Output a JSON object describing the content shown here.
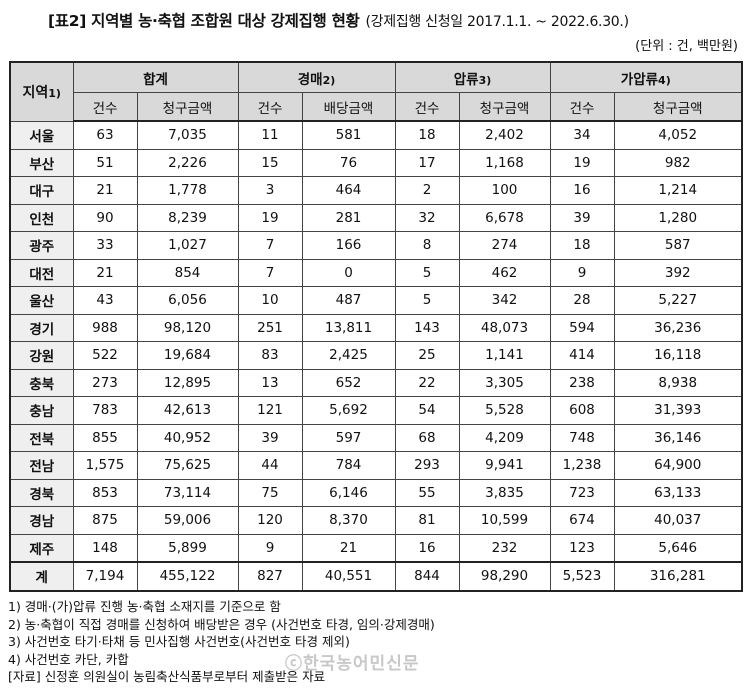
{
  "title": {
    "main": "[표2] 지역별 농·축협 조합원 대상 강제집행 현황",
    "sub": "(강제집행 신청일 2017.1.1. ~ 2022.6.30.)"
  },
  "unit": "(단위 : 건, 백만원)",
  "header": {
    "region": "지역",
    "region_sup": "1)",
    "groups": [
      {
        "label": "합계",
        "sup": ""
      },
      {
        "label": "경매",
        "sup": "2)"
      },
      {
        "label": "압류",
        "sup": "3)"
      },
      {
        "label": "가압류",
        "sup": "4)"
      }
    ],
    "sub_labels": [
      "건수",
      "청구금액",
      "건수",
      "배당금액",
      "건수",
      "청구금액",
      "건수",
      "청구금액"
    ]
  },
  "rows": [
    {
      "region": "서울",
      "values": [
        "63",
        "7,035",
        "11",
        "581",
        "18",
        "2,402",
        "34",
        "4,052"
      ]
    },
    {
      "region": "부산",
      "values": [
        "51",
        "2,226",
        "15",
        "76",
        "17",
        "1,168",
        "19",
        "982"
      ]
    },
    {
      "region": "대구",
      "values": [
        "21",
        "1,778",
        "3",
        "464",
        "2",
        "100",
        "16",
        "1,214"
      ]
    },
    {
      "region": "인천",
      "values": [
        "90",
        "8,239",
        "19",
        "281",
        "32",
        "6,678",
        "39",
        "1,280"
      ]
    },
    {
      "region": "광주",
      "values": [
        "33",
        "1,027",
        "7",
        "166",
        "8",
        "274",
        "18",
        "587"
      ]
    },
    {
      "region": "대전",
      "values": [
        "21",
        "854",
        "7",
        "0",
        "5",
        "462",
        "9",
        "392"
      ]
    },
    {
      "region": "울산",
      "values": [
        "43",
        "6,056",
        "10",
        "487",
        "5",
        "342",
        "28",
        "5,227"
      ]
    },
    {
      "region": "경기",
      "values": [
        "988",
        "98,120",
        "251",
        "13,811",
        "143",
        "48,073",
        "594",
        "36,236"
      ]
    },
    {
      "region": "강원",
      "values": [
        "522",
        "19,684",
        "83",
        "2,425",
        "25",
        "1,141",
        "414",
        "16,118"
      ]
    },
    {
      "region": "충북",
      "values": [
        "273",
        "12,895",
        "13",
        "652",
        "22",
        "3,305",
        "238",
        "8,938"
      ]
    },
    {
      "region": "충남",
      "values": [
        "783",
        "42,613",
        "121",
        "5,692",
        "54",
        "5,528",
        "608",
        "31,393"
      ]
    },
    {
      "region": "전북",
      "values": [
        "855",
        "40,952",
        "39",
        "597",
        "68",
        "4,209",
        "748",
        "36,146"
      ]
    },
    {
      "region": "전남",
      "values": [
        "1,575",
        "75,625",
        "44",
        "784",
        "293",
        "9,941",
        "1,238",
        "64,900"
      ]
    },
    {
      "region": "경북",
      "values": [
        "853",
        "73,114",
        "75",
        "6,146",
        "55",
        "3,835",
        "723",
        "63,133"
      ]
    },
    {
      "region": "경남",
      "values": [
        "875",
        "59,006",
        "120",
        "8,370",
        "81",
        "10,599",
        "674",
        "40,037"
      ]
    },
    {
      "region": "제주",
      "values": [
        "148",
        "5,899",
        "9",
        "21",
        "16",
        "232",
        "123",
        "5,646"
      ]
    }
  ],
  "total": {
    "region": "계",
    "values": [
      "7,194",
      "455,122",
      "827",
      "40,551",
      "844",
      "98,290",
      "5,523",
      "316,281"
    ]
  },
  "notes": [
    "1) 경매·(가)압류 진행 농·축협 소재지를 기준으로 함",
    "2) 농·축협이 직접 경매를 신청하여 배당받은 경우 (사건번호 타경, 임의·강제경매)",
    "3) 사건번호 타기·타채 등 민사집행 사건번호(사건번호 타경 제외)",
    "4) 사건번호 카단, 카합",
    "[자료] 신정훈 의원실이 농림축산식품부로부터 제출받은 자료"
  ],
  "watermark": "ⓒ한국농어민신문"
}
